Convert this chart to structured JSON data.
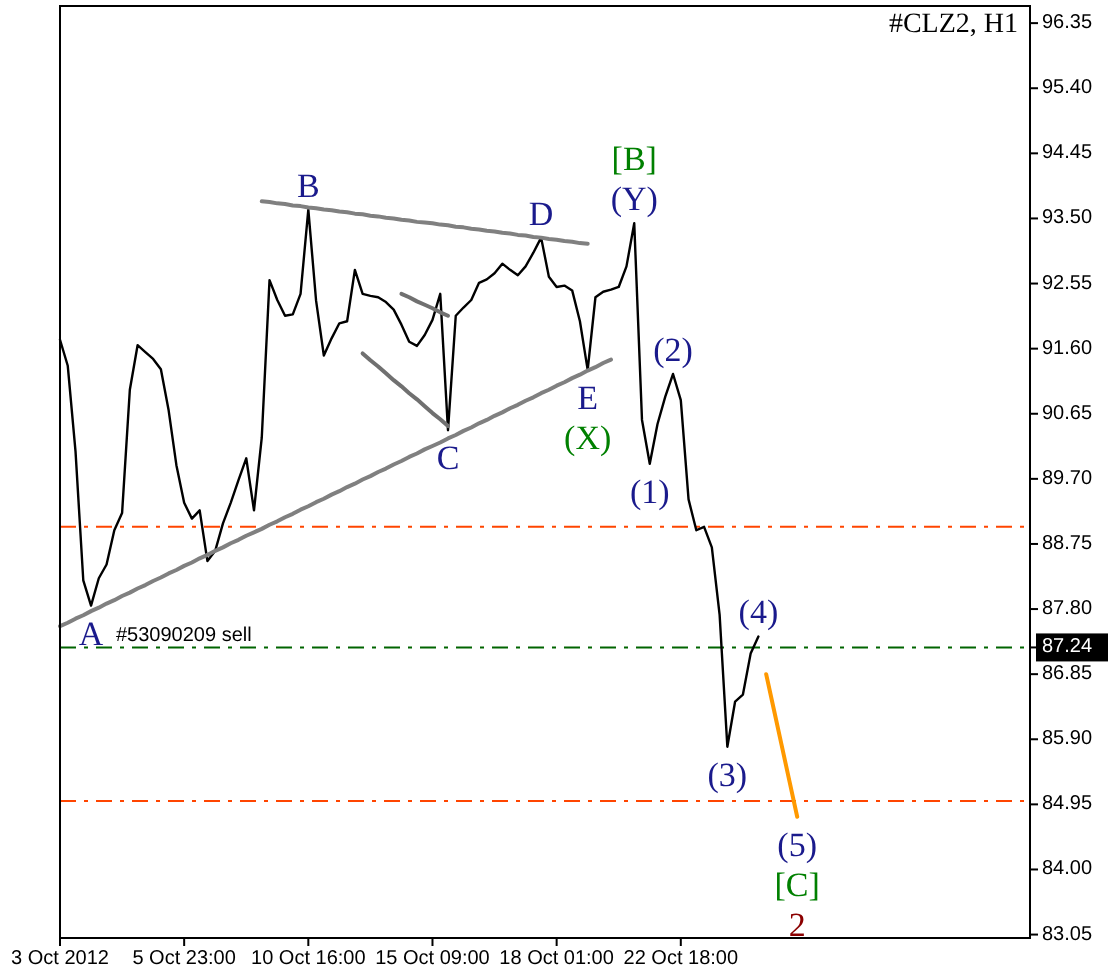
{
  "chart_data": {
    "type": "line",
    "title": "#CLZ2, H1",
    "categories": [
      "3 Oct 2012",
      null,
      null,
      null,
      null,
      null,
      null,
      null,
      null,
      null,
      null,
      null,
      null,
      null,
      null,
      null,
      "5 Oct 23:00",
      null,
      null,
      null,
      null,
      null,
      null,
      null,
      null,
      null,
      null,
      null,
      null,
      null,
      null,
      null,
      "10 Oct 16:00",
      null,
      null,
      null,
      null,
      null,
      null,
      null,
      null,
      null,
      null,
      null,
      null,
      null,
      null,
      null,
      "15 Oct 09:00",
      null,
      null,
      null,
      null,
      null,
      null,
      null,
      null,
      null,
      null,
      null,
      null,
      null,
      null,
      null,
      "18 Oct 01:00",
      null,
      null,
      null,
      null,
      null,
      null,
      null,
      null,
      null,
      null,
      null,
      null,
      null,
      null,
      null,
      "22 Oct 18:00",
      null,
      null,
      null,
      null,
      null,
      null,
      null,
      null,
      null,
      null,
      null,
      null,
      null,
      null,
      null,
      null,
      null,
      null,
      null,
      null,
      null,
      null,
      null,
      null,
      null,
      null,
      null,
      null,
      null,
      null,
      null,
      null,
      null,
      null,
      null,
      null,
      null,
      null,
      null,
      null,
      null,
      null,
      null,
      null,
      null
    ],
    "ylim": [
      83.0,
      96.6
    ],
    "yticks": [
      {
        "value": 96.35,
        "label": "96.35"
      },
      {
        "value": 95.4,
        "label": "95.40"
      },
      {
        "value": 94.45,
        "label": "94.45"
      },
      {
        "value": 93.5,
        "label": "93.50"
      },
      {
        "value": 92.55,
        "label": "92.55"
      },
      {
        "value": 91.6,
        "label": "91.60"
      },
      {
        "value": 90.65,
        "label": "90.65"
      },
      {
        "value": 89.7,
        "label": "89.70"
      },
      {
        "value": 88.75,
        "label": "88.75"
      },
      {
        "value": 87.8,
        "label": "87.80"
      },
      {
        "value": 87.24,
        "label": "87.24"
      },
      {
        "value": 86.85,
        "label": "86.85"
      },
      {
        "value": 85.9,
        "label": "85.90"
      },
      {
        "value": 84.95,
        "label": "84.95"
      },
      {
        "value": 84.0,
        "label": "84.00"
      },
      {
        "value": 83.05,
        "label": "83.05"
      }
    ],
    "grid": false,
    "marker": "none",
    "line_style": "solid",
    "series": [
      {
        "color": "#000000",
        "values": [
          91.73,
          91.35,
          90.1,
          88.22,
          87.85,
          88.25,
          88.45,
          88.95,
          89.2,
          91.0,
          91.65,
          91.55,
          91.45,
          91.3,
          90.7,
          89.9,
          89.35,
          89.12,
          89.24,
          88.5,
          88.65,
          89.05,
          89.35,
          89.68,
          90.0,
          89.24,
          90.3,
          92.6,
          92.31,
          92.08,
          92.1,
          92.4,
          93.63,
          92.3,
          91.5,
          91.75,
          91.97,
          92.0,
          92.75,
          92.4,
          92.37,
          92.35,
          92.28,
          92.17,
          91.95,
          91.7,
          91.64,
          91.8,
          92.02,
          92.4,
          90.41,
          92.08,
          92.2,
          92.31,
          92.56,
          92.61,
          92.7,
          92.84,
          92.75,
          92.67,
          92.8,
          93.0,
          93.22,
          92.65,
          92.5,
          92.52,
          92.45,
          92.0,
          91.29,
          92.35,
          92.43,
          92.46,
          92.5,
          92.8,
          93.43,
          90.56,
          89.92,
          90.5,
          90.9,
          91.23,
          90.85,
          89.4,
          88.95,
          89.0,
          88.7,
          87.72,
          85.79,
          86.45,
          86.55,
          87.15,
          87.4,
          null,
          null,
          null,
          null,
          null,
          null,
          null,
          null,
          null,
          null,
          null,
          null,
          null,
          null,
          null,
          null,
          null,
          null,
          null,
          null,
          null,
          null,
          null,
          null,
          null,
          null,
          null,
          null,
          null,
          null,
          null,
          null,
          null,
          null,
          null
        ]
      },
      {
        "color": "#ff9900",
        "values": [
          null,
          null,
          null,
          null,
          null,
          null,
          null,
          null,
          null,
          null,
          null,
          null,
          null,
          null,
          null,
          null,
          null,
          null,
          null,
          null,
          null,
          null,
          null,
          null,
          null,
          null,
          null,
          null,
          null,
          null,
          null,
          null,
          null,
          null,
          null,
          null,
          null,
          null,
          null,
          null,
          null,
          null,
          null,
          null,
          null,
          null,
          null,
          null,
          null,
          null,
          null,
          null,
          null,
          null,
          null,
          null,
          null,
          null,
          null,
          null,
          null,
          null,
          null,
          null,
          null,
          null,
          null,
          null,
          null,
          null,
          null,
          null,
          null,
          null,
          null,
          null,
          null,
          null,
          null,
          null,
          null,
          null,
          null,
          null,
          null,
          null,
          null,
          null,
          null,
          null,
          null,
          86.85,
          86.33,
          85.81,
          85.29,
          84.77,
          null,
          null,
          null,
          null,
          null,
          null,
          null,
          null,
          null,
          null,
          null,
          null,
          null,
          null,
          null,
          null,
          null,
          null,
          null,
          null,
          null,
          null,
          null,
          null,
          null,
          null,
          null,
          null,
          null,
          null
        ]
      },
      {
        "color": "#808080",
        "values": [
          null,
          null,
          null,
          null,
          null,
          null,
          null,
          null,
          null,
          null,
          null,
          null,
          null,
          null,
          null,
          null,
          null,
          null,
          null,
          null,
          null,
          null,
          null,
          null,
          null,
          null,
          93.75,
          93.74,
          93.72,
          93.71,
          93.69,
          93.68,
          93.66,
          93.65,
          93.63,
          93.62,
          93.6,
          93.59,
          93.57,
          93.56,
          93.54,
          93.53,
          93.51,
          93.5,
          93.48,
          93.47,
          93.45,
          93.44,
          93.43,
          93.41,
          93.4,
          93.38,
          93.37,
          93.35,
          93.34,
          93.32,
          93.31,
          93.29,
          93.28,
          93.26,
          93.25,
          93.23,
          93.22,
          93.2,
          93.19,
          93.17,
          93.16,
          93.14,
          93.13,
          null,
          null,
          null,
          null,
          null,
          null,
          null,
          null,
          null,
          null,
          null,
          null,
          null,
          null,
          null,
          null,
          null,
          null,
          null,
          null,
          null,
          null,
          null,
          null,
          null,
          null,
          null,
          null,
          null,
          null,
          null,
          null,
          null,
          null,
          null,
          null,
          null,
          null,
          null,
          null,
          null,
          null,
          null,
          null,
          null,
          null,
          null,
          null,
          null,
          null,
          null,
          null,
          null,
          null,
          null,
          null,
          null
        ]
      },
      {
        "color": "#808080",
        "values": [
          87.55,
          87.6,
          87.66,
          87.71,
          87.77,
          87.82,
          87.88,
          87.93,
          87.99,
          88.04,
          88.1,
          88.15,
          88.21,
          88.26,
          88.32,
          88.37,
          88.43,
          88.48,
          88.54,
          88.59,
          88.65,
          88.7,
          88.76,
          88.81,
          88.87,
          88.92,
          88.97,
          89.03,
          89.08,
          89.14,
          89.19,
          89.25,
          89.3,
          89.36,
          89.41,
          89.47,
          89.52,
          89.58,
          89.63,
          89.69,
          89.74,
          89.8,
          89.85,
          89.91,
          89.96,
          90.02,
          90.07,
          90.13,
          90.18,
          90.23,
          90.29,
          90.34,
          90.4,
          90.45,
          90.51,
          90.56,
          90.62,
          90.67,
          90.73,
          90.78,
          90.84,
          90.89,
          90.95,
          91.0,
          91.06,
          91.11,
          91.17,
          91.22,
          91.28,
          91.33,
          91.39,
          91.44,
          null,
          null,
          null,
          null,
          null,
          null,
          null,
          null,
          null,
          null,
          null,
          null,
          null,
          null,
          null,
          null,
          null,
          null,
          null,
          null,
          null,
          null,
          null,
          null,
          null,
          null,
          null,
          null,
          null,
          null,
          null,
          null,
          null,
          null,
          null,
          null,
          null,
          null,
          null,
          null,
          null,
          null,
          null,
          null,
          null,
          null,
          null,
          null,
          null,
          null,
          null,
          null,
          null,
          null
        ]
      },
      {
        "color": "#707070",
        "values": [
          null,
          null,
          null,
          null,
          null,
          null,
          null,
          null,
          null,
          null,
          null,
          null,
          null,
          null,
          null,
          null,
          null,
          null,
          null,
          null,
          null,
          null,
          null,
          null,
          null,
          null,
          null,
          null,
          null,
          null,
          null,
          null,
          null,
          null,
          null,
          null,
          null,
          null,
          null,
          91.53,
          91.43,
          91.34,
          91.24,
          91.14,
          91.05,
          90.95,
          90.86,
          90.76,
          90.66,
          90.57,
          90.47,
          null,
          null,
          null,
          null,
          null,
          null,
          null,
          null,
          null,
          null,
          null,
          null,
          null,
          null,
          null,
          null,
          null,
          null,
          null,
          null,
          null,
          null,
          null,
          null,
          null,
          null,
          null,
          null,
          null,
          null,
          null,
          null,
          null,
          null,
          null,
          null,
          null,
          null,
          null,
          null,
          null,
          null,
          null,
          null,
          null,
          null,
          null,
          null,
          null,
          null,
          null,
          null,
          null,
          null,
          null,
          null,
          null,
          null,
          null,
          null,
          null,
          null,
          null,
          null,
          null,
          null,
          null,
          null,
          null,
          null,
          null,
          null,
          null,
          null,
          null
        ]
      },
      {
        "color": "#707070",
        "values": [
          null,
          null,
          null,
          null,
          null,
          null,
          null,
          null,
          null,
          null,
          null,
          null,
          null,
          null,
          null,
          null,
          null,
          null,
          null,
          null,
          null,
          null,
          null,
          null,
          null,
          null,
          null,
          null,
          null,
          null,
          null,
          null,
          null,
          null,
          null,
          null,
          null,
          null,
          null,
          null,
          null,
          null,
          null,
          null,
          92.4,
          92.35,
          92.29,
          92.24,
          92.19,
          92.13,
          92.08,
          null,
          null,
          null,
          null,
          null,
          null,
          null,
          null,
          null,
          null,
          null,
          null,
          null,
          null,
          null,
          null,
          null,
          null,
          null,
          null,
          null,
          null,
          null,
          null,
          null,
          null,
          null,
          null,
          null,
          null,
          null,
          null,
          null,
          null,
          null,
          null,
          null,
          null,
          null,
          null,
          null,
          null,
          null,
          null,
          null,
          null,
          null,
          null,
          null,
          null,
          null,
          null,
          null,
          null,
          null,
          null,
          null,
          null,
          null,
          null,
          null,
          null,
          null,
          null,
          null,
          null,
          null,
          null,
          null,
          null,
          null,
          null,
          null,
          null,
          null
        ]
      }
    ],
    "ref_lines": [
      {
        "axis": "y",
        "value": 89.0,
        "color": "#ff4500",
        "line_style": "dashed"
      },
      {
        "axis": "y",
        "value": 87.24,
        "label": "#53090209 sell",
        "color": "#006400",
        "line_style": "dashed"
      },
      {
        "axis": "y",
        "value": 85.0,
        "color": "#ff4500",
        "line_style": "dashed"
      }
    ],
    "annotations": [
      {
        "text": "A",
        "y": 87.85
      },
      {
        "text": "B",
        "y": 93.63
      },
      {
        "text": "C",
        "y": 90.41
      },
      {
        "text": "D",
        "y": 93.22
      },
      {
        "text": "E",
        "y": 91.29
      },
      {
        "text": "(X)",
        "y": 91.29
      },
      {
        "text": "[B]",
        "y": 93.43
      },
      {
        "text": "(Y)",
        "y": 93.43
      },
      {
        "text": "(1)",
        "y": 89.92
      },
      {
        "text": "(2)",
        "y": 91.23
      },
      {
        "text": "(3)",
        "y": 85.79
      },
      {
        "text": "(4)",
        "y": 87.4
      },
      {
        "text": "(5)",
        "y": 84.77
      },
      {
        "text": "[C]",
        "y": 84.77
      },
      {
        "text": "2",
        "y": 84.77
      }
    ]
  }
}
